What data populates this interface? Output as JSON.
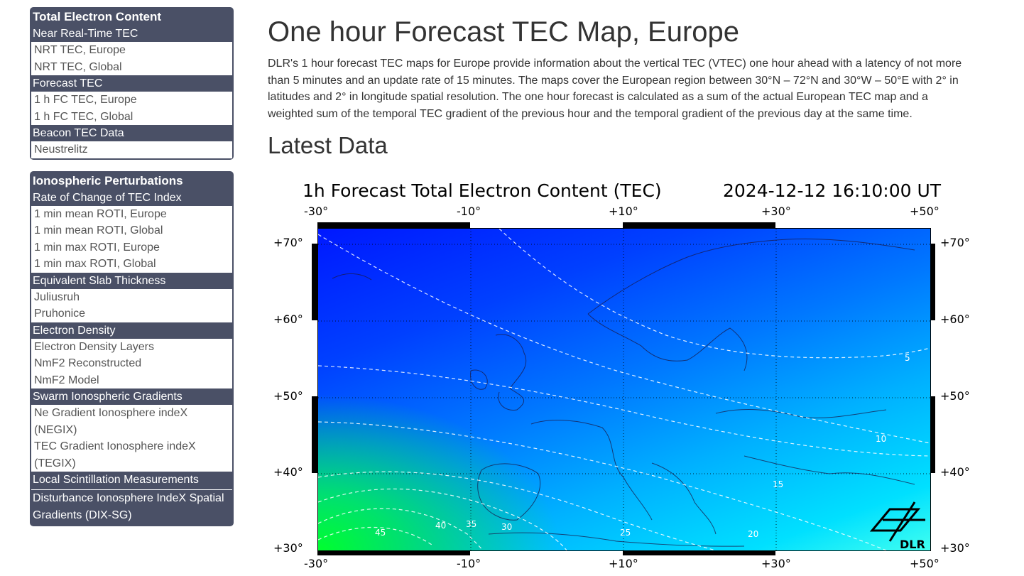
{
  "sidebar": {
    "tec_panel": {
      "title": "Total Electron Content",
      "sections": [
        {
          "head": "Near Real-Time TEC",
          "items": [
            "NRT TEC, Europe",
            "NRT TEC, Global"
          ]
        },
        {
          "head": "Forecast TEC",
          "items": [
            "1 h FC TEC, Europe",
            "1 h FC TEC, Global"
          ]
        },
        {
          "head": "Beacon TEC Data",
          "items": [
            "Neustrelitz"
          ]
        }
      ]
    },
    "iono_panel": {
      "title": "Ionospheric Perturbations",
      "sections": [
        {
          "head": "Rate of Change of TEC Index",
          "items": [
            "1 min mean ROTI, Europe",
            "1 min mean ROTI, Global",
            "1 min max ROTI, Europe",
            "1 min max ROTI, Global"
          ]
        },
        {
          "head": "Equivalent Slab Thickness",
          "items": [
            "Juliusruh",
            "Pruhonice"
          ]
        },
        {
          "head": "Electron Density",
          "items": [
            "Electron Density Layers",
            "NmF2 Reconstructed",
            "NmF2 Model"
          ]
        },
        {
          "head": "Swarm Ionospheric Gradients",
          "items": [
            "Ne Gradient Ionosphere indeX (NEGIX)",
            "TEC Gradient Ionosphere indeX (TEGIX)"
          ]
        }
      ],
      "local_scintillation": "Local Scintillation Measurements",
      "dix_sg": "Disturbance Ionosphere IndeX Spatial Gradients (DIX-SG)"
    }
  },
  "main": {
    "title": "One hour Forecast TEC Map, Europe",
    "intro": "DLR's 1 hour forecast TEC maps for Europe provide information about the vertical TEC (VTEC) one hour ahead with a latency of not more than 5 minutes and an update rate of 15 minutes. The maps cover the European region between 30°N – 72°N and 30°W – 50°E with 2° in latitudes and 2° in longitude spatial resolution. The one hour forecast is calculated as a sum of the actual European TEC map and a weighted sum of the temporal TEC gradient of the previous hour and the temporal gradient of the previous day at the same time.",
    "latest_heading": "Latest Data"
  },
  "map_figure": {
    "title": "1h Forecast Total Electron Content (TEC)",
    "timestamp": "2024-12-12 16:10:00 UT",
    "lon_labels": [
      "-30°",
      "-10°",
      "+10°",
      "+30°",
      "+50°"
    ],
    "lat_labels": [
      "+70°",
      "+60°",
      "+50°",
      "+40°",
      "+30°"
    ],
    "lon_range": [
      -30,
      50
    ],
    "lat_range": [
      30,
      72
    ],
    "contour_labels": [
      "5",
      "10",
      "15",
      "20",
      "25",
      "30",
      "35",
      "40",
      "45"
    ],
    "logo": "DLR",
    "colors": {
      "low_tec": "#0018ff",
      "mid_tec": "#00b0ff",
      "high_tec": "#00ff2e"
    }
  }
}
